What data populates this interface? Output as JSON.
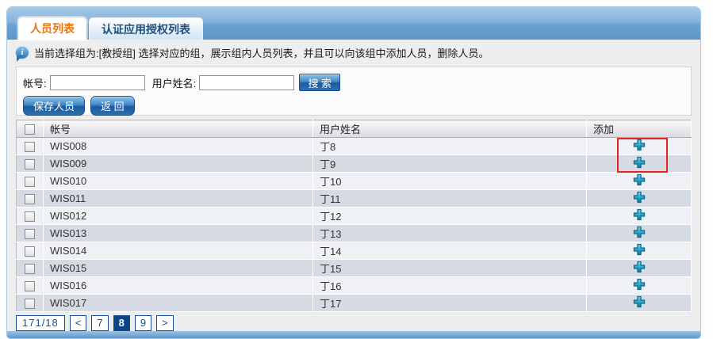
{
  "tabs": [
    {
      "label": "人员列表",
      "active": true
    },
    {
      "label": "认证应用授权列表",
      "active": false
    }
  ],
  "info_bar": {
    "icon": "info-bubble-icon",
    "icon_glyph": "i",
    "text": "当前选择组为:[教授组] 选择对应的组，展示组内人员列表，并且可以向该组中添加人员，删除人员。"
  },
  "search_form": {
    "account_label": "帐号:",
    "account_value": "",
    "name_label": "用户姓名:",
    "name_value": "",
    "search_button_label": "搜 索"
  },
  "action_buttons": {
    "save_label": "保存人员",
    "back_label": "返 回"
  },
  "table": {
    "headers": {
      "account": "帐号",
      "name": "用户姓名",
      "add": "添加"
    },
    "add_icon": "plus-icon",
    "rows": [
      {
        "account": "WIS008",
        "name": "丁8"
      },
      {
        "account": "WIS009",
        "name": "丁9"
      },
      {
        "account": "WIS010",
        "name": "丁10"
      },
      {
        "account": "WIS011",
        "name": "丁11"
      },
      {
        "account": "WIS012",
        "name": "丁12"
      },
      {
        "account": "WIS013",
        "name": "丁13"
      },
      {
        "account": "WIS014",
        "name": "丁14"
      },
      {
        "account": "WIS015",
        "name": "丁15"
      },
      {
        "account": "WIS016",
        "name": "丁16"
      },
      {
        "account": "WIS017",
        "name": "丁17"
      }
    ]
  },
  "pagination": {
    "summary": "171/18",
    "prev_label": "<",
    "pages": [
      "7",
      "8",
      "9"
    ],
    "active_page": "8",
    "next_label": ">"
  },
  "annotation": {
    "highlight_color": "#e52620"
  },
  "colors": {
    "active_tab_text": "#e8760a",
    "inactive_tab_text": "#1c4f7e",
    "tab_band_blue": "#6aa1cf",
    "button_blue": "#1c5a9e",
    "plus_icon_teal": "#1583a8",
    "pagination_navy": "#1b4a94",
    "row_light": "#f0f1f5",
    "row_dark": "#d6dae3"
  }
}
